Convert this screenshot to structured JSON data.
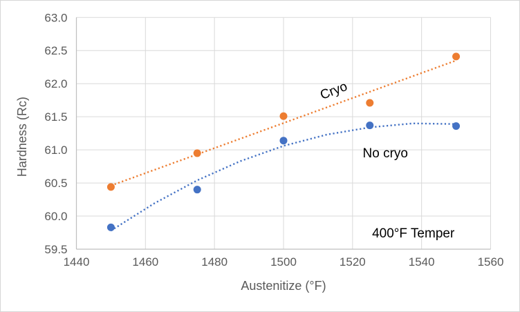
{
  "chart_data": {
    "type": "scatter",
    "title": "",
    "grid": true,
    "legend_position": "none",
    "background": "#ffffff",
    "gridline_color": "#d9d9d9",
    "axis_line_color": "#bfbfbf",
    "tick_text_color": "#595959",
    "x_axis": {
      "title": "Austenitize (°F)",
      "min": 1440,
      "max": 1560,
      "tick_step": 20,
      "tick_labels": [
        "1440",
        "1460",
        "1480",
        "1500",
        "1520",
        "1540",
        "1560"
      ]
    },
    "y_axis": {
      "title": "Hardness (Rc)",
      "min": 59.5,
      "max": 63.0,
      "tick_step": 0.5,
      "tick_labels": [
        "59.5",
        "60.0",
        "60.5",
        "61.0",
        "61.5",
        "62.0",
        "62.5",
        "63.0"
      ]
    },
    "series": [
      {
        "name": "Cryo",
        "color": "#ED7D31",
        "marker": "circle",
        "marker_radius": 5.5,
        "x": [
          1450,
          1475,
          1500,
          1525,
          1550
        ],
        "y": [
          60.44,
          60.95,
          61.51,
          61.71,
          62.41
        ],
        "trendline": {
          "style": "dotted",
          "shape": "linear",
          "x": [
            1450,
            1550
          ],
          "y": [
            60.46,
            62.35
          ]
        }
      },
      {
        "name": "No cryo",
        "color": "#4472C4",
        "marker": "circle",
        "marker_radius": 5.5,
        "x": [
          1450,
          1475,
          1500,
          1525,
          1550
        ],
        "y": [
          59.83,
          60.4,
          61.14,
          61.37,
          61.36
        ],
        "trendline": {
          "style": "dotted",
          "shape": "quadratic",
          "x": [
            1450,
            1462.5,
            1475,
            1487.5,
            1500,
            1512.5,
            1525,
            1537.5,
            1550
          ],
          "y": [
            59.78,
            60.19,
            60.54,
            60.83,
            61.06,
            61.23,
            61.34,
            61.4,
            61.39
          ]
        }
      }
    ],
    "annotations": [
      {
        "text": "Cryo",
        "x": 1514.5,
        "y": 61.9,
        "rotation": -21,
        "color": "#000000"
      },
      {
        "text": "No cryo",
        "x": 1529.5,
        "y": 60.955,
        "rotation": 0,
        "color": "#000000"
      },
      {
        "text": "400°F Temper",
        "x": 1537.6,
        "y": 59.745,
        "rotation": 0,
        "color": "#000000"
      }
    ]
  }
}
